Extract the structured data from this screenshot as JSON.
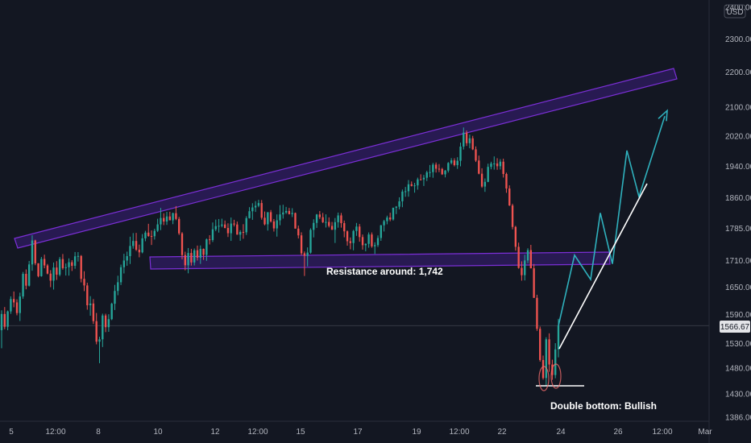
{
  "chart_data": {
    "type": "candlestick",
    "currency": "USD",
    "y_scale": "log",
    "ylim": [
      1370,
      2420
    ],
    "y_ticks": [
      1386.0,
      1430.0,
      1480.0,
      1530.0,
      1590.0,
      1650.0,
      1710.0,
      1785.0,
      1860.0,
      1940.0,
      2020.0,
      2100.0,
      2200.0,
      2300.0,
      2400.0
    ],
    "x_ticks": [
      "5",
      "12:00",
      "8",
      "10",
      "12",
      "12:00",
      "15",
      "17",
      "19",
      "12:00",
      "22",
      "24",
      "26",
      "12:00",
      "Mar"
    ],
    "last_price": "1566.67",
    "candles": [
      [
        1557.3,
        1599.4,
        1520.1,
        1591.5
      ],
      [
        1591.5,
        1606.4,
        1559.3,
        1564.5
      ],
      [
        1564.5,
        1598.9,
        1557.2,
        1597.0
      ],
      [
        1597.0,
        1629.5,
        1591.8,
        1623.7
      ],
      [
        1623.7,
        1640.2,
        1605.9,
        1616.4
      ],
      [
        1616.4,
        1623.2,
        1588.7,
        1593.5
      ],
      [
        1593.5,
        1637.6,
        1576.7,
        1629.3
      ],
      [
        1629.3,
        1683.6,
        1624.3,
        1679.4
      ],
      [
        1679.4,
        1689.4,
        1645.0,
        1653.0
      ],
      [
        1653.0,
        1708.6,
        1651.1,
        1700.7
      ],
      [
        1700.7,
        1768.4,
        1686.4,
        1756.3
      ],
      [
        1756.3,
        1758.0,
        1699.0,
        1703.3
      ],
      [
        1703.3,
        1703.5,
        1671.7,
        1674.1
      ],
      [
        1674.1,
        1717.9,
        1673.0,
        1713.2
      ],
      [
        1713.2,
        1723.1,
        1692.0,
        1698.4
      ],
      [
        1698.4,
        1701.8,
        1678.2,
        1679.9
      ],
      [
        1679.9,
        1687.7,
        1649.7,
        1664.2
      ],
      [
        1664.2,
        1705.1,
        1644.4,
        1693.7
      ],
      [
        1693.7,
        1708.2,
        1665.7,
        1677.5
      ],
      [
        1677.5,
        1717.8,
        1673.9,
        1713.0
      ],
      [
        1713.0,
        1724.6,
        1688.8,
        1692.3
      ],
      [
        1692.3,
        1702.9,
        1675.6,
        1694.3
      ],
      [
        1694.3,
        1714.5,
        1675.4,
        1705.7
      ],
      [
        1705.7,
        1710.5,
        1685.9,
        1697.6
      ],
      [
        1697.6,
        1729.2,
        1690.9,
        1719.3
      ],
      [
        1719.3,
        1729.0,
        1707.3,
        1720.1
      ],
      [
        1720.1,
        1722.2,
        1660.3,
        1668.2
      ],
      [
        1668.2,
        1685.3,
        1641.0,
        1653.5
      ],
      [
        1653.5,
        1659.5,
        1600.7,
        1610.2
      ],
      [
        1610.2,
        1630.0,
        1587.8,
        1614.0
      ],
      [
        1614.0,
        1623.6,
        1570.4,
        1576.3
      ],
      [
        1576.3,
        1593.7,
        1528.1,
        1533.6
      ],
      [
        1533.6,
        1543.8,
        1490.0,
        1538.4
      ],
      [
        1538.4,
        1592.2,
        1522.6,
        1588.3
      ],
      [
        1588.3,
        1592.1,
        1553.3,
        1563.6
      ],
      [
        1563.6,
        1591.0,
        1553.9,
        1580.5
      ],
      [
        1580.5,
        1615.7,
        1578.5,
        1613.5
      ],
      [
        1613.5,
        1654.8,
        1600.0,
        1641.4
      ],
      [
        1641.4,
        1675.2,
        1632.0,
        1660.6
      ],
      [
        1660.6,
        1700.3,
        1654.4,
        1694.4
      ],
      [
        1694.4,
        1725.1,
        1680.3,
        1709.6
      ],
      [
        1709.6,
        1730.1,
        1697.7,
        1719.7
      ],
      [
        1719.7,
        1765.1,
        1701.7,
        1743.3
      ],
      [
        1743.3,
        1773.6,
        1736.9,
        1755.0
      ],
      [
        1755.0,
        1774.1,
        1731.6,
        1734.6
      ],
      [
        1734.6,
        1746.5,
        1717.0,
        1728.5
      ],
      [
        1728.5,
        1771.3,
        1726.2,
        1761.1
      ],
      [
        1761.1,
        1779.0,
        1754.4,
        1774.7
      ],
      [
        1774.7,
        1795.8,
        1764.9,
        1766.7
      ],
      [
        1766.7,
        1780.0,
        1745.6,
        1766.2
      ],
      [
        1766.2,
        1784.0,
        1758.3,
        1779.0
      ],
      [
        1779.0,
        1808.0,
        1776.1,
        1794.4
      ],
      [
        1794.4,
        1834.4,
        1780.7,
        1809.9
      ],
      [
        1809.9,
        1821.4,
        1792.7,
        1801.3
      ],
      [
        1801.3,
        1824.8,
        1793.2,
        1813.6
      ],
      [
        1813.6,
        1825.0,
        1804.2,
        1804.2
      ],
      [
        1804.2,
        1822.9,
        1795.0,
        1821.5
      ],
      [
        1821.5,
        1838.8,
        1804.6,
        1807.6
      ],
      [
        1807.6,
        1812.5,
        1769.1,
        1772.9
      ],
      [
        1772.9,
        1776.0,
        1712.3,
        1722.2
      ],
      [
        1722.2,
        1730.0,
        1687.3,
        1698.8
      ],
      [
        1698.8,
        1738.5,
        1680.6,
        1727.0
      ],
      [
        1727.0,
        1736.6,
        1698.1,
        1705.3
      ],
      [
        1705.3,
        1737.5,
        1698.4,
        1733.3
      ],
      [
        1733.3,
        1744.2,
        1709.6,
        1716.2
      ],
      [
        1716.2,
        1744.5,
        1701.9,
        1736.6
      ],
      [
        1736.6,
        1737.4,
        1711.1,
        1722.6
      ],
      [
        1722.6,
        1760.8,
        1708.8,
        1758.8
      ],
      [
        1758.8,
        1768.6,
        1746.8,
        1757.2
      ],
      [
        1757.2,
        1799.0,
        1752.6,
        1782.6
      ],
      [
        1782.6,
        1806.0,
        1778.1,
        1790.3
      ],
      [
        1790.3,
        1807.3,
        1774.8,
        1791.0
      ],
      [
        1791.0,
        1808.2,
        1787.3,
        1794.1
      ],
      [
        1794.1,
        1803.7,
        1785.0,
        1785.8
      ],
      [
        1785.8,
        1797.0,
        1764.4,
        1773.3
      ],
      [
        1773.3,
        1811.0,
        1755.2,
        1796.4
      ],
      [
        1796.4,
        1805.5,
        1789.4,
        1794.2
      ],
      [
        1794.2,
        1801.2,
        1769.9,
        1769.9
      ],
      [
        1769.9,
        1780.5,
        1755.4,
        1776.3
      ],
      [
        1776.3,
        1794.9,
        1760.2,
        1775.5
      ],
      [
        1775.5,
        1814.2,
        1769.2,
        1809.5
      ],
      [
        1809.5,
        1836.3,
        1808.6,
        1826.3
      ],
      [
        1826.3,
        1846.0,
        1805.4,
        1835.6
      ],
      [
        1835.6,
        1851.2,
        1824.6,
        1839.7
      ],
      [
        1839.7,
        1854.4,
        1836.1,
        1846.5
      ],
      [
        1846.5,
        1853.9,
        1805.8,
        1810.4
      ],
      [
        1810.4,
        1825.6,
        1792.2,
        1794.6
      ],
      [
        1794.6,
        1824.0,
        1779.6,
        1824.0
      ],
      [
        1824.0,
        1829.3,
        1798.8,
        1801.5
      ],
      [
        1801.5,
        1807.4,
        1777.2,
        1784.8
      ],
      [
        1784.8,
        1818.5,
        1765.3,
        1804.2
      ],
      [
        1804.2,
        1841.1,
        1792.5,
        1818.5
      ],
      [
        1818.5,
        1842.2,
        1808.3,
        1823.2
      ],
      [
        1823.2,
        1836.9,
        1819.6,
        1826.9
      ],
      [
        1826.9,
        1834.4,
        1818.4,
        1819.3
      ],
      [
        1819.3,
        1833.7,
        1812.2,
        1822.0
      ],
      [
        1822.0,
        1823.0,
        1784.3,
        1784.3
      ],
      [
        1784.3,
        1791.6,
        1760.9,
        1768.2
      ],
      [
        1768.2,
        1775.5,
        1721.7,
        1726.2
      ],
      [
        1726.2,
        1730.6,
        1674.6,
        1720.3
      ],
      [
        1720.3,
        1739.9,
        1696.3,
        1727.9
      ],
      [
        1727.9,
        1785.0,
        1725.4,
        1781.3
      ],
      [
        1781.3,
        1806.7,
        1763.4,
        1798.0
      ],
      [
        1798.0,
        1819.5,
        1786.0,
        1818.3
      ],
      [
        1818.3,
        1826.8,
        1807.2,
        1811.7
      ],
      [
        1811.7,
        1822.1,
        1797.7,
        1799.7
      ],
      [
        1799.7,
        1818.7,
        1786.9,
        1800.2
      ],
      [
        1800.2,
        1811.3,
        1787.0,
        1790.7
      ],
      [
        1790.7,
        1800.3,
        1781.2,
        1781.6
      ],
      [
        1781.6,
        1809.8,
        1750.3,
        1799.7
      ],
      [
        1799.7,
        1823.0,
        1786.5,
        1816.1
      ],
      [
        1816.1,
        1822.1,
        1786.6,
        1797.4
      ],
      [
        1797.4,
        1803.6,
        1763.7,
        1777.8
      ],
      [
        1777.8,
        1780.0,
        1744.0,
        1754.4
      ],
      [
        1754.4,
        1763.2,
        1735.5,
        1750.1
      ],
      [
        1750.1,
        1781.4,
        1733.2,
        1778.6
      ],
      [
        1778.6,
        1797.9,
        1767.0,
        1789.2
      ],
      [
        1789.2,
        1795.4,
        1753.3,
        1764.2
      ],
      [
        1764.2,
        1770.3,
        1734.7,
        1745.1
      ],
      [
        1745.1,
        1749.4,
        1730.9,
        1748.2
      ],
      [
        1748.2,
        1775.2,
        1739.2,
        1770.3
      ],
      [
        1770.3,
        1775.2,
        1739.1,
        1742.5
      ],
      [
        1742.5,
        1751.9,
        1724.9,
        1745.3
      ],
      [
        1745.3,
        1768.1,
        1740.9,
        1762.0
      ],
      [
        1762.0,
        1793.2,
        1755.3,
        1792.2
      ],
      [
        1792.2,
        1805.4,
        1777.4,
        1802.2
      ],
      [
        1802.2,
        1815.5,
        1794.6,
        1811.0
      ],
      [
        1811.0,
        1822.7,
        1802.0,
        1806.4
      ],
      [
        1806.4,
        1834.9,
        1803.5,
        1834.9
      ],
      [
        1834.9,
        1838.9,
        1819.3,
        1837.4
      ],
      [
        1837.4,
        1860.7,
        1831.0,
        1850.7
      ],
      [
        1850.7,
        1880.2,
        1836.2,
        1875.0
      ],
      [
        1875.0,
        1886.6,
        1862.0,
        1875.8
      ],
      [
        1875.8,
        1904.2,
        1862.2,
        1893.4
      ],
      [
        1893.4,
        1900.6,
        1888.0,
        1889.3
      ],
      [
        1889.3,
        1897.0,
        1872.3,
        1890.6
      ],
      [
        1890.6,
        1910.3,
        1879.9,
        1905.9
      ],
      [
        1905.9,
        1918.9,
        1903.5,
        1905.8
      ],
      [
        1905.8,
        1917.3,
        1889.1,
        1910.0
      ],
      [
        1910.0,
        1928.0,
        1901.7,
        1923.8
      ],
      [
        1923.8,
        1942.9,
        1911.7,
        1924.5
      ],
      [
        1924.5,
        1948.4,
        1910.0,
        1943.9
      ],
      [
        1943.9,
        1949.5,
        1923.4,
        1933.3
      ],
      [
        1933.3,
        1945.4,
        1924.4,
        1932.6
      ],
      [
        1932.6,
        1935.6,
        1917.3,
        1918.9
      ],
      [
        1918.9,
        1930.0,
        1911.0,
        1928.5
      ],
      [
        1928.5,
        1950.5,
        1923.5,
        1948.2
      ],
      [
        1948.2,
        1960.9,
        1944.5,
        1955.0
      ],
      [
        1955.0,
        1960.6,
        1939.3,
        1942.7
      ],
      [
        1942.7,
        1963.3,
        1932.9,
        1954.0
      ],
      [
        1954.0,
        2002.0,
        1939.5,
        1991.5
      ],
      [
        1991.5,
        2043.1,
        1983.7,
        2029.1
      ],
      [
        2029.1,
        2034.9,
        1993.2,
        2000.5
      ],
      [
        2000.5,
        2023.9,
        1987.0,
        2013.6
      ],
      [
        2013.6,
        2020.3,
        1982.1,
        1984.1
      ],
      [
        1984.1,
        1991.9,
        1950.8,
        1954.6
      ],
      [
        1954.6,
        1967.6,
        1918.9,
        1920.4
      ],
      [
        1920.4,
        1934.5,
        1884.5,
        1887.7
      ],
      [
        1887.7,
        1908.3,
        1874.3,
        1899.6
      ],
      [
        1899.6,
        1946.4,
        1898.8,
        1938.1
      ],
      [
        1938.1,
        1951.4,
        1931.8,
        1946.8
      ],
      [
        1946.8,
        1965.4,
        1930.9,
        1946.9
      ],
      [
        1946.9,
        1960.7,
        1930.6,
        1939.8
      ],
      [
        1939.8,
        1958.3,
        1931.2,
        1951.6
      ],
      [
        1951.6,
        1959.5,
        1910.6,
        1919.7
      ],
      [
        1919.7,
        1923.2,
        1871.9,
        1882.7
      ],
      [
        1882.7,
        1890.7,
        1839.2,
        1840.5
      ],
      [
        1840.5,
        1844.7,
        1782.5,
        1788.3
      ],
      [
        1788.3,
        1790.9,
        1732.3,
        1741.3
      ],
      [
        1741.3,
        1751.1,
        1691.0,
        1692.8
      ],
      [
        1692.8,
        1707.8,
        1664.2,
        1676.4
      ],
      [
        1676.4,
        1722.9,
        1664.7,
        1709.8
      ],
      [
        1709.8,
        1738.0,
        1703.4,
        1733.6
      ],
      [
        1733.6,
        1745.9,
        1691.8,
        1691.9
      ],
      [
        1691.9,
        1701.7,
        1626.0,
        1626.3
      ],
      [
        1626.3,
        1633.0,
        1555.9,
        1560.2
      ],
      [
        1560.2,
        1564.9,
        1493.1,
        1496.4
      ],
      [
        1496.4,
        1505.3,
        1457.6,
        1460.7
      ],
      [
        1460.7,
        1542.7,
        1445.3,
        1538.4
      ],
      [
        1538.4,
        1550.8,
        1473.0,
        1487.4
      ],
      [
        1487.4,
        1497.0,
        1457.1,
        1466.6
      ],
      [
        1466.6,
        1530.5,
        1460.2,
        1517.8
      ],
      [
        1517.8,
        1581.1,
        1501.8,
        1566.7
      ]
    ],
    "forecast_path": [
      [
        1566.7,
        "start"
      ],
      [
        1722
      ],
      [
        1667
      ],
      [
        1822
      ],
      [
        1702
      ],
      [
        1981
      ],
      [
        1862
      ],
      [
        2074
      ]
    ],
    "zones": [
      {
        "name": "ascending resistance channel"
      },
      {
        "name": "horizontal resistance zone"
      }
    ],
    "annotations": {
      "resistance": "Resistance around: 1,742",
      "double_bottom": "Double bottom: Bullish"
    }
  },
  "colors": {
    "background": "#131722",
    "up": "#26a69a",
    "down": "#ef5350",
    "zone_fill": "#2d1b5a",
    "zone_stroke": "#7b2fd6",
    "forecast": "#2fb1bd",
    "trendline": "#ffffff",
    "price_line": "#363a45",
    "price_tag": "#e3e4e8",
    "double_bottom_mark": "#f06b6b"
  }
}
